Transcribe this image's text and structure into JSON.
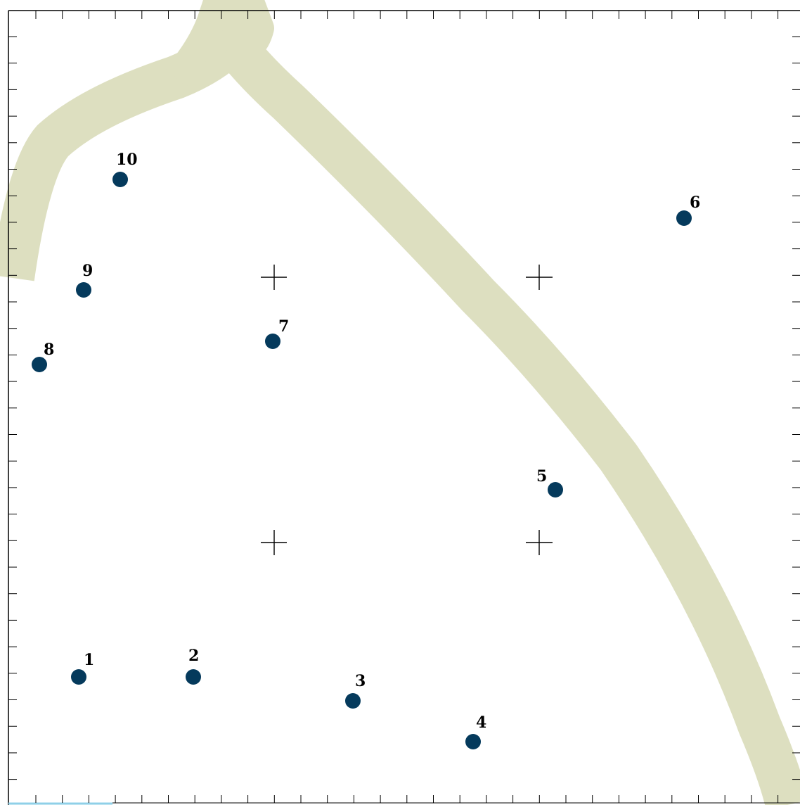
{
  "colors": {
    "background": "#ffffff",
    "road": "#dddfc0",
    "point": "#053a5c",
    "frame": "#000000",
    "bottom_edge": "#8fd0e8"
  },
  "points": [
    {
      "label": "1"
    },
    {
      "label": "2"
    },
    {
      "label": "3"
    },
    {
      "label": "4"
    },
    {
      "label": "5"
    },
    {
      "label": "6"
    },
    {
      "label": "7"
    },
    {
      "label": "8"
    },
    {
      "label": "9"
    },
    {
      "label": "10"
    }
  ]
}
